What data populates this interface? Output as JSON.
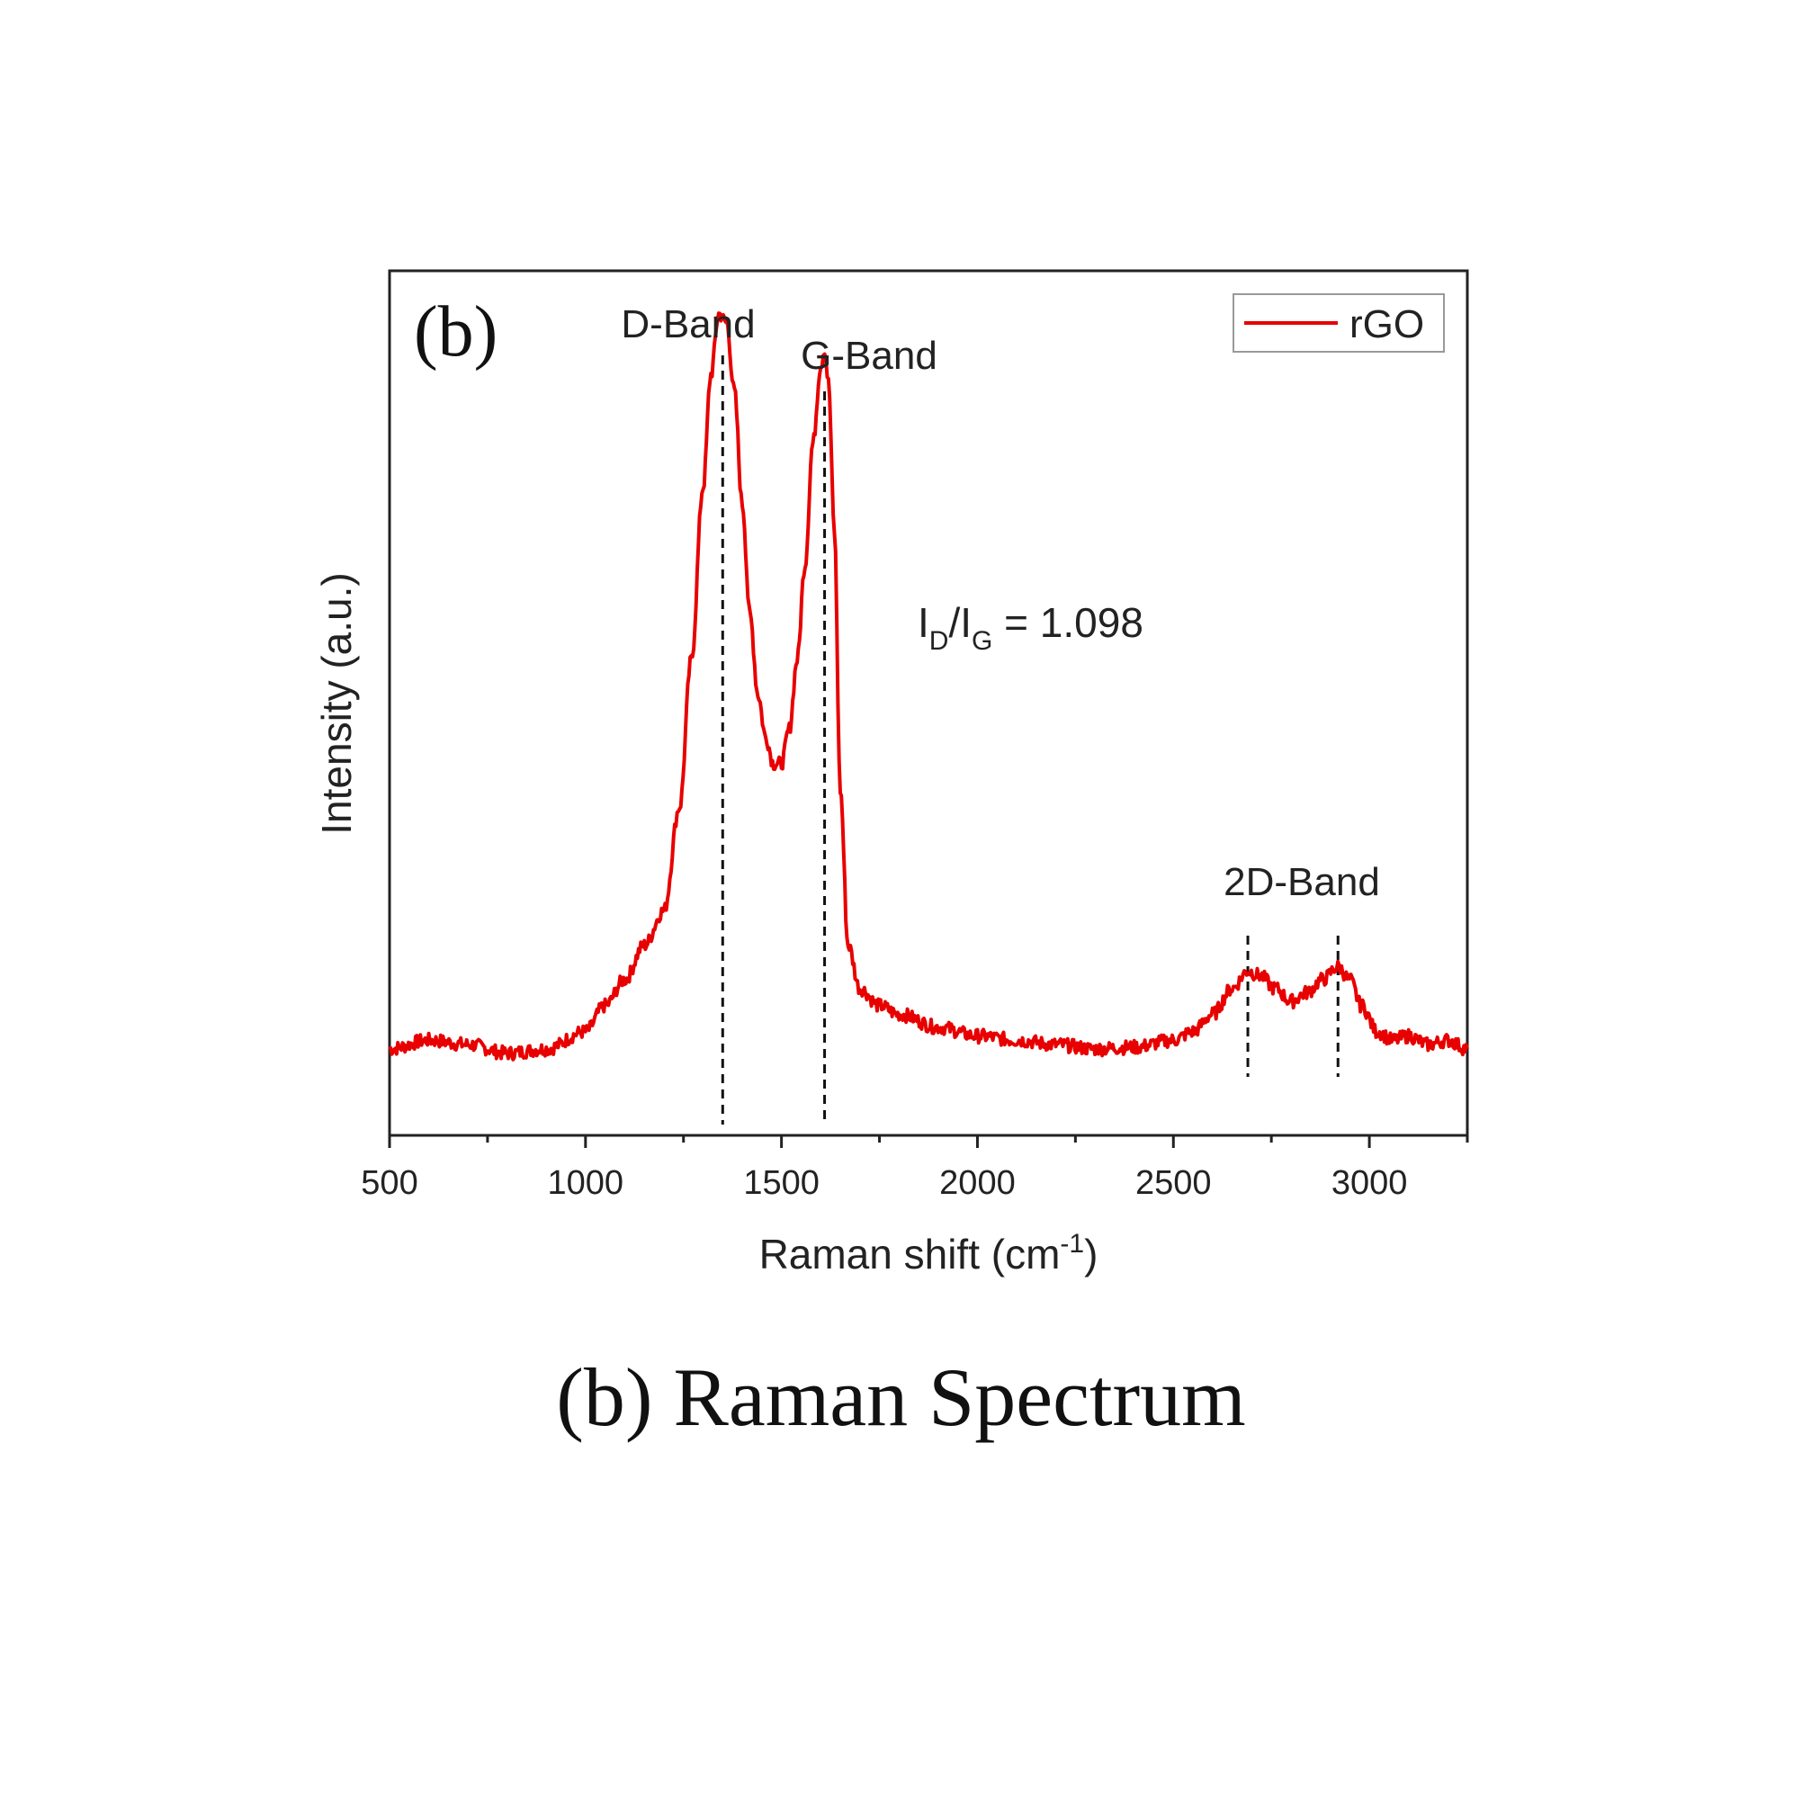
{
  "caption": "(b) Raman Spectrum",
  "chart_data": {
    "type": "line",
    "panel_label": "(b)",
    "title": "",
    "xlabel": "Raman shift (cm",
    "xlabel_superscript": "-1",
    "xlabel_suffix": ")",
    "ylabel": "Intensity (a.u.)",
    "xlim": [
      500,
      3250
    ],
    "ylim": [
      0,
      100
    ],
    "x_ticks": [
      500,
      1000,
      1500,
      2000,
      2500,
      3000
    ],
    "y_ticks_shown": false,
    "legend": {
      "position": "top-right",
      "entries": [
        {
          "label": "rGO",
          "color": "#e80000"
        }
      ]
    },
    "series": [
      {
        "name": "rGO",
        "color": "#e80000",
        "x": [
          500,
          600,
          700,
          800,
          900,
          1000,
          1050,
          1100,
          1150,
          1200,
          1240,
          1270,
          1300,
          1320,
          1340,
          1360,
          1380,
          1400,
          1420,
          1440,
          1460,
          1480,
          1500,
          1520,
          1540,
          1560,
          1580,
          1600,
          1610,
          1620,
          1635,
          1650,
          1670,
          1700,
          1750,
          1800,
          1900,
          2000,
          2100,
          2200,
          2300,
          2400,
          2500,
          2550,
          2600,
          2650,
          2690,
          2720,
          2760,
          2800,
          2840,
          2880,
          2920,
          2950,
          2980,
          3020,
          3060,
          3100,
          3150,
          3200,
          3250
        ],
        "y": [
          10,
          11,
          10.5,
          9.5,
          10,
          12,
          15,
          18,
          22,
          26,
          38,
          55,
          75,
          88,
          95,
          94,
          86,
          73,
          60,
          51,
          46,
          43,
          43,
          47,
          55,
          66,
          80,
          89,
          91,
          87,
          70,
          40,
          22,
          17,
          15,
          14,
          12.5,
          11.5,
          11,
          10.5,
          10,
          10.2,
          11,
          12,
          14,
          17,
          19,
          18.5,
          17,
          15.5,
          16.5,
          18,
          19.5,
          18,
          15,
          12,
          11,
          11.5,
          10.5,
          11,
          10
        ]
      }
    ],
    "annotations": [
      {
        "text": "D-Band",
        "x": 1350
      },
      {
        "text": "G-Band",
        "x": 1610
      },
      {
        "text": "2D-Band",
        "x": 2800
      },
      {
        "text": "I",
        "sub": "D",
        "text2": "/I",
        "sub2": "G",
        "text3": " = 1.098"
      }
    ],
    "reference_lines": [
      1350,
      1610,
      2690,
      2920
    ]
  }
}
